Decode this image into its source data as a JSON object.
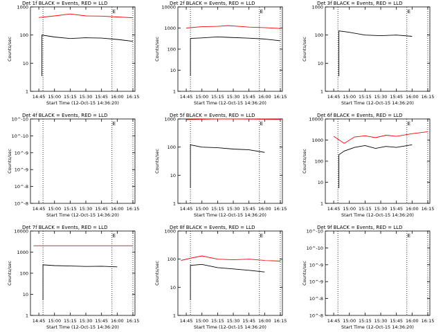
{
  "chart_data": [
    {
      "type": "line",
      "title": "Det 1f BLACK = Events, RED = LLD",
      "xlabel": "Start Time (12-Oct-15 14:36:20)",
      "ylabel": "Counts/sec",
      "ylim": [
        1,
        1000
      ],
      "yscale": "log",
      "ytick_labels": [
        "1",
        "10",
        "100",
        "1000"
      ],
      "xtick_labels": [
        "14:45",
        "15:00",
        "15:15",
        "15:30",
        "15:45",
        "16:00",
        "16:15"
      ],
      "series": [
        {
          "color": "#ff0000",
          "x": [
            "14:45",
            "15:00",
            "15:15",
            "15:30",
            "15:45",
            "16:00",
            "16:15"
          ],
          "values": [
            420,
            480,
            560,
            480,
            470,
            440,
            410
          ]
        },
        {
          "color": "#000000",
          "x": [
            "14:48",
            "15:00",
            "15:15",
            "15:30",
            "15:45",
            "16:00",
            "16:15"
          ],
          "values": [
            100,
            85,
            75,
            80,
            78,
            70,
            60
          ]
        }
      ],
      "annotation": "E",
      "vlines": [
        "14:49",
        "15:55",
        "16:15"
      ]
    },
    {
      "type": "line",
      "title": "Det 2f BLACK = Events, RED = LLD",
      "xlabel": "Start Time (12-Oct-15 14:36:20)",
      "ylabel": "Counts/sec",
      "ylim": [
        1,
        10000
      ],
      "yscale": "log",
      "ytick_labels": [
        "1",
        "10",
        "100",
        "1000",
        "10000"
      ],
      "xtick_labels": [
        "14:45",
        "15:00",
        "15:15",
        "15:30",
        "15:45",
        "16:00",
        "16:15"
      ],
      "series": [
        {
          "color": "#ff0000",
          "x": [
            "14:45",
            "15:00",
            "15:15",
            "15:25",
            "15:45",
            "16:00",
            "16:15"
          ],
          "values": [
            1000,
            1150,
            1200,
            1300,
            1100,
            1050,
            950
          ]
        },
        {
          "color": "#000000",
          "x": [
            "14:49",
            "15:00",
            "15:15",
            "15:25",
            "15:45",
            "16:00",
            "16:15"
          ],
          "values": [
            320,
            340,
            380,
            360,
            330,
            300,
            250
          ]
        }
      ],
      "annotation": "E",
      "vlines": [
        "14:49",
        "15:55",
        "16:15"
      ]
    },
    {
      "type": "line",
      "title": "Det 3f BLACK = Events, RED = LLD",
      "xlabel": "Start Time (12-Oct-15 14:36:20)",
      "ylabel": "Counts/sec",
      "ylim": [
        1,
        1000
      ],
      "yscale": "log",
      "ytick_labels": [
        "1",
        "10",
        "100",
        "1000"
      ],
      "xtick_labels": [
        "14:45",
        "15:00",
        "15:15",
        "15:30",
        "15:45",
        "16:00",
        "16:15"
      ],
      "series": [
        {
          "color": "#000000",
          "x": [
            "14:50",
            "15:00",
            "15:15",
            "15:30",
            "15:45",
            "16:00"
          ],
          "values": [
            140,
            125,
            100,
            95,
            100,
            90
          ]
        }
      ],
      "annotation": "E",
      "vlines": [
        "14:49",
        "15:55",
        "16:15"
      ]
    },
    {
      "type": "line",
      "title": "Det 4f BLACK = Events, RED = LLD",
      "xlabel": "Start Time (12-Oct-15 14:36:20)",
      "ylabel": "Counts/sec",
      "ylim": [
        1e-10,
        1e-08
      ],
      "yscale": "log",
      "ytick_labels": [
        "10^-8",
        "10^-8",
        "10^-9",
        "10^-9",
        "10^-10",
        "10^-10"
      ],
      "xtick_labels": [
        "14:45",
        "15:00",
        "15:15",
        "15:30",
        "15:45",
        "16:00",
        "16:15"
      ],
      "series": [],
      "annotation": "E",
      "vlines": [
        "14:49",
        "15:55",
        "16:15"
      ]
    },
    {
      "type": "line",
      "title": "Det 5f BLACK = Events, RED = LLD",
      "xlabel": "Start Time (12-Oct-15 14:36:20)",
      "ylabel": "Counts/sec",
      "ylim": [
        1,
        1000
      ],
      "yscale": "log",
      "ytick_labels": [
        "1",
        "10",
        "100",
        "1000"
      ],
      "xtick_labels": [
        "14:45",
        "15:00",
        "15:15",
        "15:30",
        "15:45",
        "16:00",
        "16:15"
      ],
      "series": [
        {
          "color": "#ff0000",
          "x": [
            "14:45",
            "15:00",
            "15:15",
            "15:30",
            "15:45",
            "16:00",
            "16:15"
          ],
          "values": [
            950,
            980,
            1000,
            1000,
            990,
            980,
            960
          ]
        },
        {
          "color": "#000000",
          "x": [
            "14:49",
            "15:00",
            "15:15",
            "15:30",
            "15:45",
            "16:00"
          ],
          "values": [
            120,
            100,
            95,
            85,
            80,
            65
          ]
        }
      ],
      "annotation": "E",
      "vlines": [
        "14:49",
        "15:55",
        "16:15"
      ]
    },
    {
      "type": "line",
      "title": "Det 6f BLACK = Events, RED = LLD",
      "xlabel": "Start Time (12-Oct-15 14:36:20)",
      "ylabel": "Counts/sec",
      "ylim": [
        1,
        10000
      ],
      "yscale": "log",
      "ytick_labels": [
        "1",
        "10",
        "100",
        "1000",
        "10000"
      ],
      "xtick_labels": [
        "14:45",
        "15:00",
        "15:15",
        "15:30",
        "15:45",
        "16:00",
        "16:15"
      ],
      "series": [
        {
          "color": "#ff0000",
          "x": [
            "14:45",
            "14:55",
            "15:05",
            "15:15",
            "15:25",
            "15:35",
            "15:45",
            "16:00",
            "16:15"
          ],
          "values": [
            1500,
            700,
            1400,
            1600,
            1300,
            1700,
            1500,
            2000,
            2500
          ]
        },
        {
          "color": "#000000",
          "x": [
            "14:50",
            "14:55",
            "15:05",
            "15:15",
            "15:25",
            "15:35",
            "15:45",
            "16:00"
          ],
          "values": [
            200,
            300,
            450,
            550,
            400,
            500,
            450,
            600
          ]
        }
      ],
      "annotation": "E",
      "vlines": [
        "14:49",
        "15:55",
        "16:15"
      ]
    },
    {
      "type": "line",
      "title": "Det 7f BLACK = Events, RED = LLD",
      "xlabel": "Start Time (12-Oct-15 14:36:20)",
      "ylabel": "Counts/sec",
      "ylim": [
        1,
        10000
      ],
      "yscale": "log",
      "ytick_labels": [
        "1",
        "10",
        "100",
        "1000",
        "10000"
      ],
      "xtick_labels": [
        "14:45",
        "15:00",
        "15:15",
        "15:30",
        "15:45",
        "16:00",
        "16:15"
      ],
      "series": [
        {
          "color": "#ff0000",
          "x": [
            "14:40",
            "15:00",
            "15:15",
            "15:30",
            "15:45",
            "16:00",
            "16:15"
          ],
          "values": [
            2000,
            2000,
            2000,
            2000,
            2000,
            2000,
            2000
          ]
        },
        {
          "color": "#000000",
          "x": [
            "14:49",
            "15:00",
            "15:15",
            "15:30",
            "15:45",
            "16:00"
          ],
          "values": [
            250,
            230,
            220,
            210,
            215,
            200
          ]
        }
      ],
      "annotation": "E",
      "vlines": [
        "14:49",
        "15:55",
        "16:15"
      ]
    },
    {
      "type": "line",
      "title": "Det 8f BLACK = Events, RED = LLD",
      "xlabel": "Start Time (12-Oct-15 14:36:20)",
      "ylabel": "Counts/sec",
      "ylim": [
        1,
        1000
      ],
      "yscale": "log",
      "ytick_labels": [
        "1",
        "10",
        "100",
        "1000"
      ],
      "xtick_labels": [
        "14:45",
        "15:00",
        "15:15",
        "15:30",
        "15:45",
        "16:00",
        "16:15"
      ],
      "series": [
        {
          "color": "#ff0000",
          "x": [
            "14:40",
            "14:50",
            "15:00",
            "15:15",
            "15:30",
            "15:45",
            "16:00",
            "16:15"
          ],
          "values": [
            90,
            110,
            130,
            100,
            95,
            100,
            90,
            85
          ]
        },
        {
          "color": "#000000",
          "x": [
            "14:49",
            "15:00",
            "15:15",
            "15:30",
            "15:45",
            "16:00"
          ],
          "values": [
            60,
            65,
            50,
            45,
            40,
            35
          ]
        }
      ],
      "annotation": "E",
      "vlines": [
        "14:49",
        "15:55",
        "16:15"
      ]
    },
    {
      "type": "line",
      "title": "Det 9f BLACK = Events, RED = LLD",
      "xlabel": "Start Time (12-Oct-15 14:36:20)",
      "ylabel": "Counts/sec",
      "ylim": [
        1e-10,
        1e-08
      ],
      "yscale": "log",
      "ytick_labels": [
        "10^-8",
        "10^-8",
        "10^-9",
        "10^-9",
        "10^-10",
        "10^-10"
      ],
      "xtick_labels": [
        "14:45",
        "15:00",
        "15:15",
        "15:30",
        "15:45",
        "16:00",
        "16:15"
      ],
      "series": [],
      "annotation": "E",
      "vlines": [
        "14:49",
        "15:55",
        "16:15"
      ]
    }
  ]
}
